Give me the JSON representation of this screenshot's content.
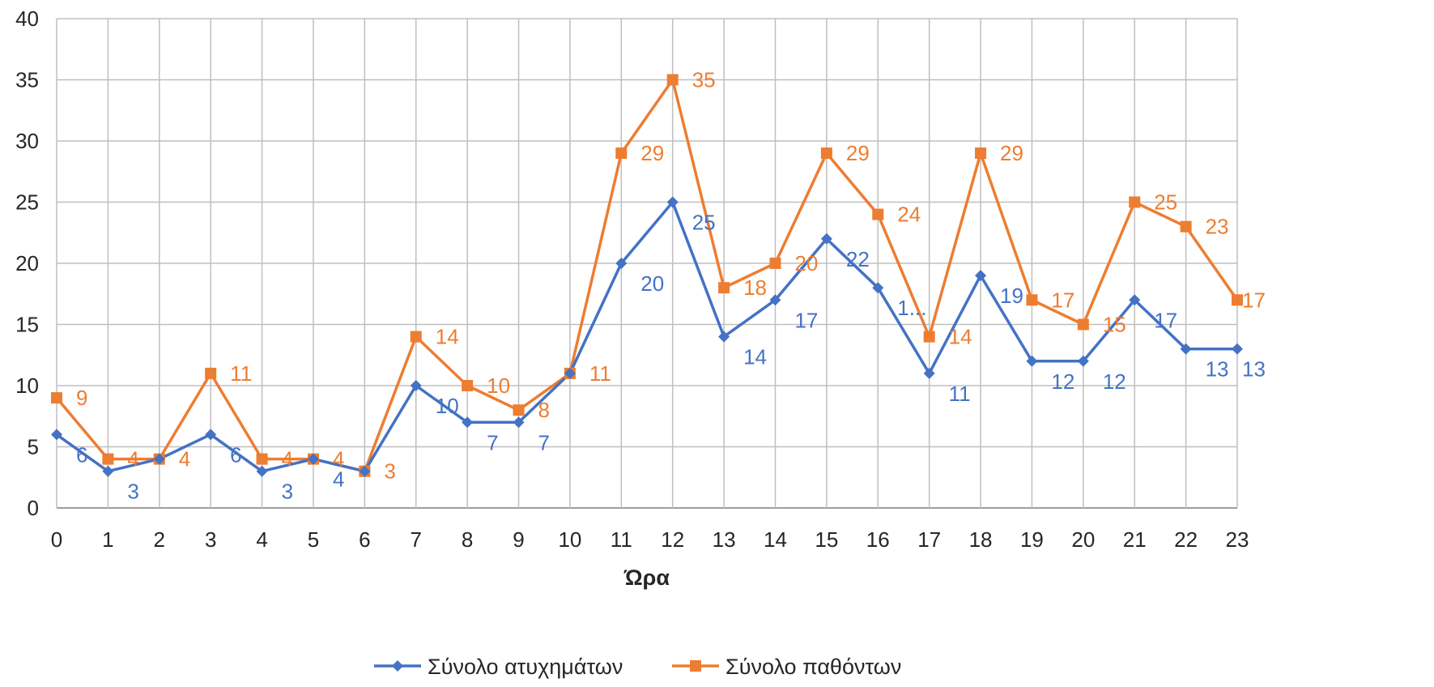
{
  "chart_data": {
    "type": "line",
    "title": "",
    "xlabel": "Ώρα",
    "ylabel": "",
    "x": [
      0,
      1,
      2,
      3,
      4,
      5,
      6,
      7,
      8,
      9,
      10,
      11,
      12,
      13,
      14,
      15,
      16,
      17,
      18,
      19,
      20,
      21,
      22,
      23
    ],
    "ylim": [
      0,
      40
    ],
    "yticks": [
      0,
      5,
      10,
      15,
      20,
      25,
      30,
      35,
      40
    ],
    "grid": true,
    "legend_position": "bottom",
    "series": [
      {
        "name": "Σύνολο ατυχημάτων",
        "color": "#4472c4",
        "marker": "diamond",
        "values": [
          6,
          3,
          4,
          6,
          3,
          4,
          3,
          10,
          7,
          7,
          11,
          20,
          25,
          14,
          17,
          22,
          18,
          11,
          19,
          12,
          12,
          17,
          13,
          13
        ],
        "labels": [
          "6",
          "3",
          "",
          "6",
          "3",
          "4",
          "",
          "10",
          "7",
          "7",
          "",
          "20",
          "25",
          "14",
          "17",
          "22",
          "1...",
          "11",
          "19",
          "12",
          "12",
          "17",
          "13",
          "13"
        ]
      },
      {
        "name": "Σύνολο παθόντων",
        "color": "#ed7d31",
        "marker": "square",
        "values": [
          9,
          4,
          4,
          11,
          4,
          4,
          3,
          14,
          10,
          8,
          11,
          29,
          35,
          18,
          20,
          29,
          24,
          14,
          29,
          17,
          15,
          25,
          23,
          17
        ],
        "labels": [
          "9",
          "4",
          "4",
          "11",
          "4",
          "4",
          "3",
          "14",
          "10",
          "8",
          "11",
          "29",
          "35",
          "18",
          "20",
          "29",
          "24",
          "14",
          "29",
          "17",
          "15",
          "25",
          "23",
          "17"
        ]
      }
    ]
  }
}
